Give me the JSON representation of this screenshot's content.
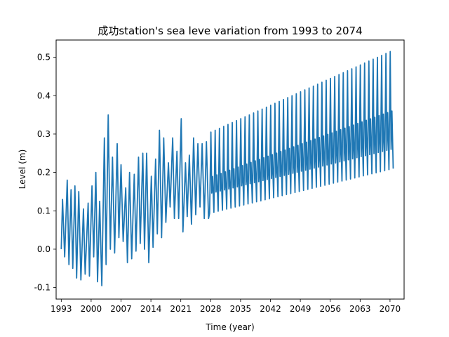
{
  "chart_data": {
    "type": "line",
    "title": "成功station's sea leve variation from 1993 to 2074",
    "xlabel": "Time (year)",
    "ylabel": "Level (m)",
    "xlim": [
      1991.8,
      2073.3
    ],
    "ylim": [
      -0.13,
      0.545
    ],
    "x_ticks": [
      1993,
      2000,
      2007,
      2014,
      2021,
      2028,
      2035,
      2042,
      2049,
      2056,
      2063,
      2070
    ],
    "y_ticks": [
      -0.1,
      0.0,
      0.1,
      0.2,
      0.3,
      0.4,
      0.5
    ],
    "y_tick_labels": [
      "-0.1",
      "0.0",
      "0.1",
      "0.2",
      "0.3",
      "0.4",
      "0.5"
    ],
    "grid": false,
    "series": [
      {
        "color": "#1f77b4",
        "peaks": [
          [
            1993.3,
            0.13
          ],
          [
            1994.4,
            0.18
          ],
          [
            1995.3,
            0.155
          ],
          [
            1996.2,
            0.165
          ],
          [
            1997.1,
            0.15
          ],
          [
            1998.2,
            0.105
          ],
          [
            1999.3,
            0.12
          ],
          [
            2000.2,
            0.165
          ],
          [
            2001.1,
            0.2
          ],
          [
            2002.0,
            0.125
          ],
          [
            2003.1,
            0.29
          ],
          [
            2004.0,
            0.35
          ],
          [
            2005.0,
            0.24
          ],
          [
            2006.1,
            0.275
          ],
          [
            2007.0,
            0.22
          ],
          [
            2008.1,
            0.16
          ],
          [
            2009.0,
            0.2
          ],
          [
            2010.1,
            0.195
          ],
          [
            2011.1,
            0.24
          ],
          [
            2012.1,
            0.25
          ],
          [
            2013.0,
            0.25
          ],
          [
            2014.1,
            0.19
          ],
          [
            2015.1,
            0.235
          ],
          [
            2016.0,
            0.31
          ],
          [
            2017.0,
            0.29
          ],
          [
            2018.1,
            0.225
          ],
          [
            2019.1,
            0.29
          ],
          [
            2020.1,
            0.255
          ],
          [
            2021.1,
            0.34
          ],
          [
            2022.1,
            0.225
          ],
          [
            2023.0,
            0.245
          ],
          [
            2024.0,
            0.29
          ],
          [
            2025.0,
            0.275
          ],
          [
            2026.0,
            0.275
          ],
          [
            2027.0,
            0.28
          ]
        ],
        "troughs": [
          [
            1993.0,
            0.0
          ],
          [
            1993.8,
            -0.02
          ],
          [
            1994.8,
            -0.04
          ],
          [
            1995.7,
            -0.05
          ],
          [
            1996.6,
            -0.075
          ],
          [
            1997.6,
            -0.08
          ],
          [
            1998.6,
            -0.065
          ],
          [
            1999.6,
            -0.07
          ],
          [
            2000.6,
            -0.02
          ],
          [
            2001.5,
            -0.085
          ],
          [
            2002.5,
            -0.095
          ],
          [
            2003.5,
            -0.04
          ],
          [
            2004.5,
            0.0
          ],
          [
            2005.5,
            -0.01
          ],
          [
            2006.5,
            0.03
          ],
          [
            2007.5,
            0.02
          ],
          [
            2008.5,
            -0.035
          ],
          [
            2009.5,
            -0.025
          ],
          [
            2010.5,
            -0.005
          ],
          [
            2011.5,
            0.015
          ],
          [
            2012.5,
            0.0
          ],
          [
            2013.5,
            -0.035
          ],
          [
            2014.5,
            0.005
          ],
          [
            2015.5,
            0.04
          ],
          [
            2016.5,
            0.03
          ],
          [
            2017.5,
            0.07
          ],
          [
            2018.5,
            0.11
          ],
          [
            2019.5,
            0.08
          ],
          [
            2020.5,
            0.08
          ],
          [
            2021.5,
            0.045
          ],
          [
            2022.5,
            0.085
          ],
          [
            2023.5,
            0.065
          ],
          [
            2024.5,
            0.09
          ],
          [
            2025.5,
            0.11
          ],
          [
            2026.5,
            0.08
          ],
          [
            2027.5,
            0.08
          ]
        ],
        "projection": {
          "start_year": 2022,
          "end_year": 2070,
          "peak_start": 0.275,
          "peak_end": 0.515,
          "trough_start": 0.08,
          "trough_end": 0.21,
          "mid_peak_start": 0.165,
          "mid_peak_end": 0.36,
          "mid_trough_start": 0.13,
          "mid_trough_end": 0.26
        }
      }
    ]
  }
}
